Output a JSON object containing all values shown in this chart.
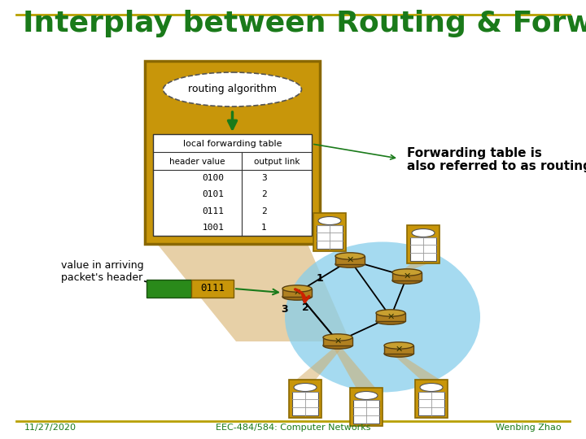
{
  "title": "Interplay between Routing & Forwarding",
  "title_color": "#1a7a1a",
  "title_fontsize": 26,
  "bg_color": "#ffffff",
  "border_color": "#b8a000",
  "footer_left": "11/27/2020",
  "footer_center": "EEC-484/584: Computer Networks",
  "footer_right": "Wenbing Zhao",
  "footer_color": "#1a7a1a",
  "box_bg": "#c8960a",
  "box_border": "#8a6800",
  "table_header": "local forwarding table",
  "col1_header": "header value",
  "col2_header": "output link",
  "rows": [
    [
      "0100",
      "3"
    ],
    [
      "0101",
      "2"
    ],
    [
      "0111",
      "2"
    ],
    [
      "1001",
      "1"
    ]
  ],
  "algo_label": "routing algorithm",
  "fwd_note_line1": "Forwarding table is",
  "fwd_note_line2": "also referred to as routing table",
  "arriving_label": "value in arriving\npacket's header",
  "packet_value": "0111",
  "link_numbers": [
    "1",
    "2",
    "3"
  ],
  "cloud_color": "#87ceeb",
  "tan_cone_color": "#d4aa60",
  "router_top_color": "#c8a030",
  "router_mid_color": "#b08020",
  "router_bot_color": "#a07018",
  "router_edge_color": "#5a4010",
  "green_arrow_color": "#1a7a1a",
  "red_arrow_color": "#cc2200",
  "pkt_green": "#2a8a1a",
  "pkt_gold": "#c8960a"
}
